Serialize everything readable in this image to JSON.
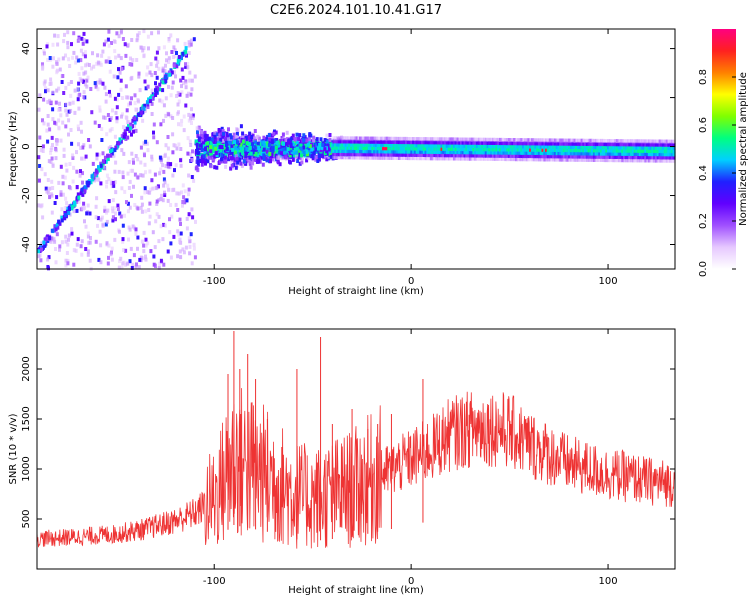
{
  "title": "C2E6.2024.101.10.41.G17",
  "chart_data": [
    {
      "type": "heatmap",
      "xlabel": "Height of straight line (km)",
      "ylabel": "Frequency (Hz)",
      "xlim": [
        -190,
        134
      ],
      "ylim": [
        -50,
        48
      ],
      "x_ticks": [
        -100,
        0,
        100
      ],
      "y_ticks": [
        -40,
        -20,
        0,
        20,
        40
      ],
      "x_tick_labels": [
        "-100",
        "0",
        "100"
      ],
      "y_tick_labels": [
        "-40",
        "-20",
        "0",
        "20",
        "40"
      ],
      "colorbar": {
        "label": "Normalized spectral amplitude",
        "range": [
          0,
          1
        ],
        "ticks": [
          0.0,
          0.2,
          0.4,
          0.6,
          0.8
        ],
        "tick_labels": [
          "0.0",
          "0.2",
          "0.4",
          "0.6",
          "0.8"
        ],
        "colormap": [
          "#ffffff",
          "#e6c8ff",
          "#a050ff",
          "#6000ff",
          "#2020ff",
          "#00d0ff",
          "#00ff80",
          "#80ff00",
          "#ffff00",
          "#ff8000",
          "#ff2020",
          "#ff0080"
        ]
      },
      "features": {
        "diagonal_line": {
          "x": [
            -190,
            -115
          ],
          "y": [
            -42,
            40
          ],
          "peak_amplitude": 0.35
        },
        "carrier_line": {
          "x": [
            -110,
            134
          ],
          "y": [
            1,
            -1
          ],
          "peak_amplitude": 0.95
        },
        "noise_region_x": [
          -110,
          -30
        ],
        "noise_spread_hz": 8
      },
      "grid": false
    },
    {
      "type": "line",
      "xlabel": "Height of straight line (km)",
      "ylabel": "SNR (10 * v/v)",
      "xlim": [
        -190,
        134
      ],
      "ylim": [
        0,
        2400
      ],
      "x_ticks": [
        -100,
        0,
        100
      ],
      "y_ticks": [
        500,
        1000,
        1500,
        2000
      ],
      "x_tick_labels": [
        "-100",
        "0",
        "100"
      ],
      "y_tick_labels": [
        "500",
        "1000",
        "1500",
        "2000"
      ],
      "series": [
        {
          "color": "#ee3333",
          "envelope": {
            "x": [
              -190,
              -170,
              -150,
              -135,
              -120,
              -110,
              -100,
              -95,
              -90,
              -80,
              -70,
              -60,
              -50,
              -40,
              -30,
              -20,
              -10,
              0,
              10,
              20,
              30,
              40,
              50,
              60,
              70,
              80,
              90,
              100,
              110,
              120,
              134
            ],
            "y": [
              300,
              320,
              350,
              400,
              480,
              560,
              700,
              900,
              1100,
              1000,
              900,
              750,
              700,
              750,
              800,
              900,
              1000,
              1100,
              1200,
              1350,
              1400,
              1420,
              1380,
              1250,
              1150,
              1050,
              1000,
              950,
              920,
              880,
              850
            ]
          },
          "spikes": [
            {
              "x": -93,
              "y": 1950
            },
            {
              "x": -90,
              "y": 2380
            },
            {
              "x": -87,
              "y": 2000
            },
            {
              "x": -83,
              "y": 2150
            },
            {
              "x": -79,
              "y": 1900
            },
            {
              "x": -73,
              "y": 1500
            },
            {
              "x": -58,
              "y": 2000
            },
            {
              "x": -46,
              "y": 2320
            },
            {
              "x": -40,
              "y": 1450
            },
            {
              "x": -30,
              "y": 1600
            },
            {
              "x": -22,
              "y": 1400
            },
            {
              "x": -17,
              "y": 1450
            },
            {
              "x": -10,
              "y": 1550
            },
            {
              "x": 6,
              "y": 1900
            }
          ]
        }
      ],
      "grid": false
    }
  ]
}
